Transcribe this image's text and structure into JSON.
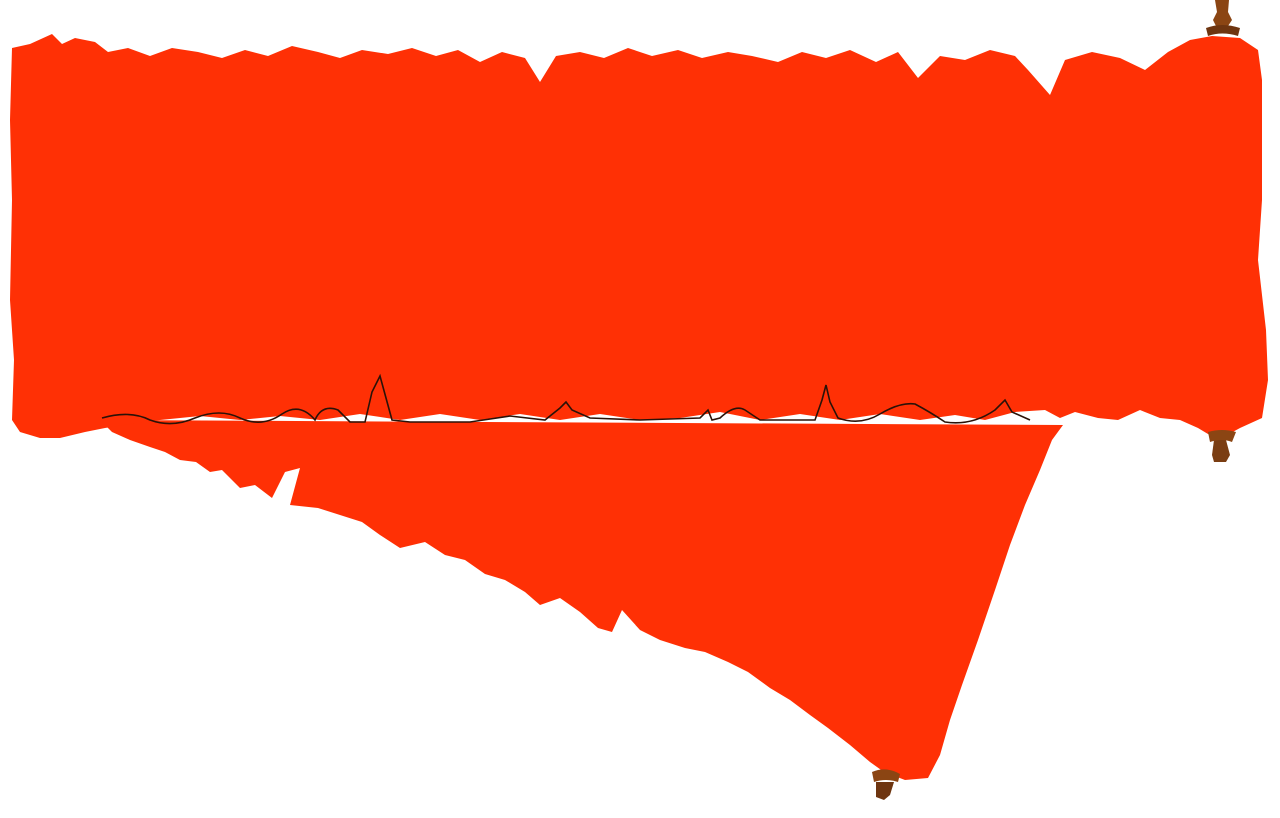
{
  "scroll": {
    "paper_color": "#ff3005",
    "handle_color": "#8b4513",
    "fold_line_color": "#2a1208"
  }
}
